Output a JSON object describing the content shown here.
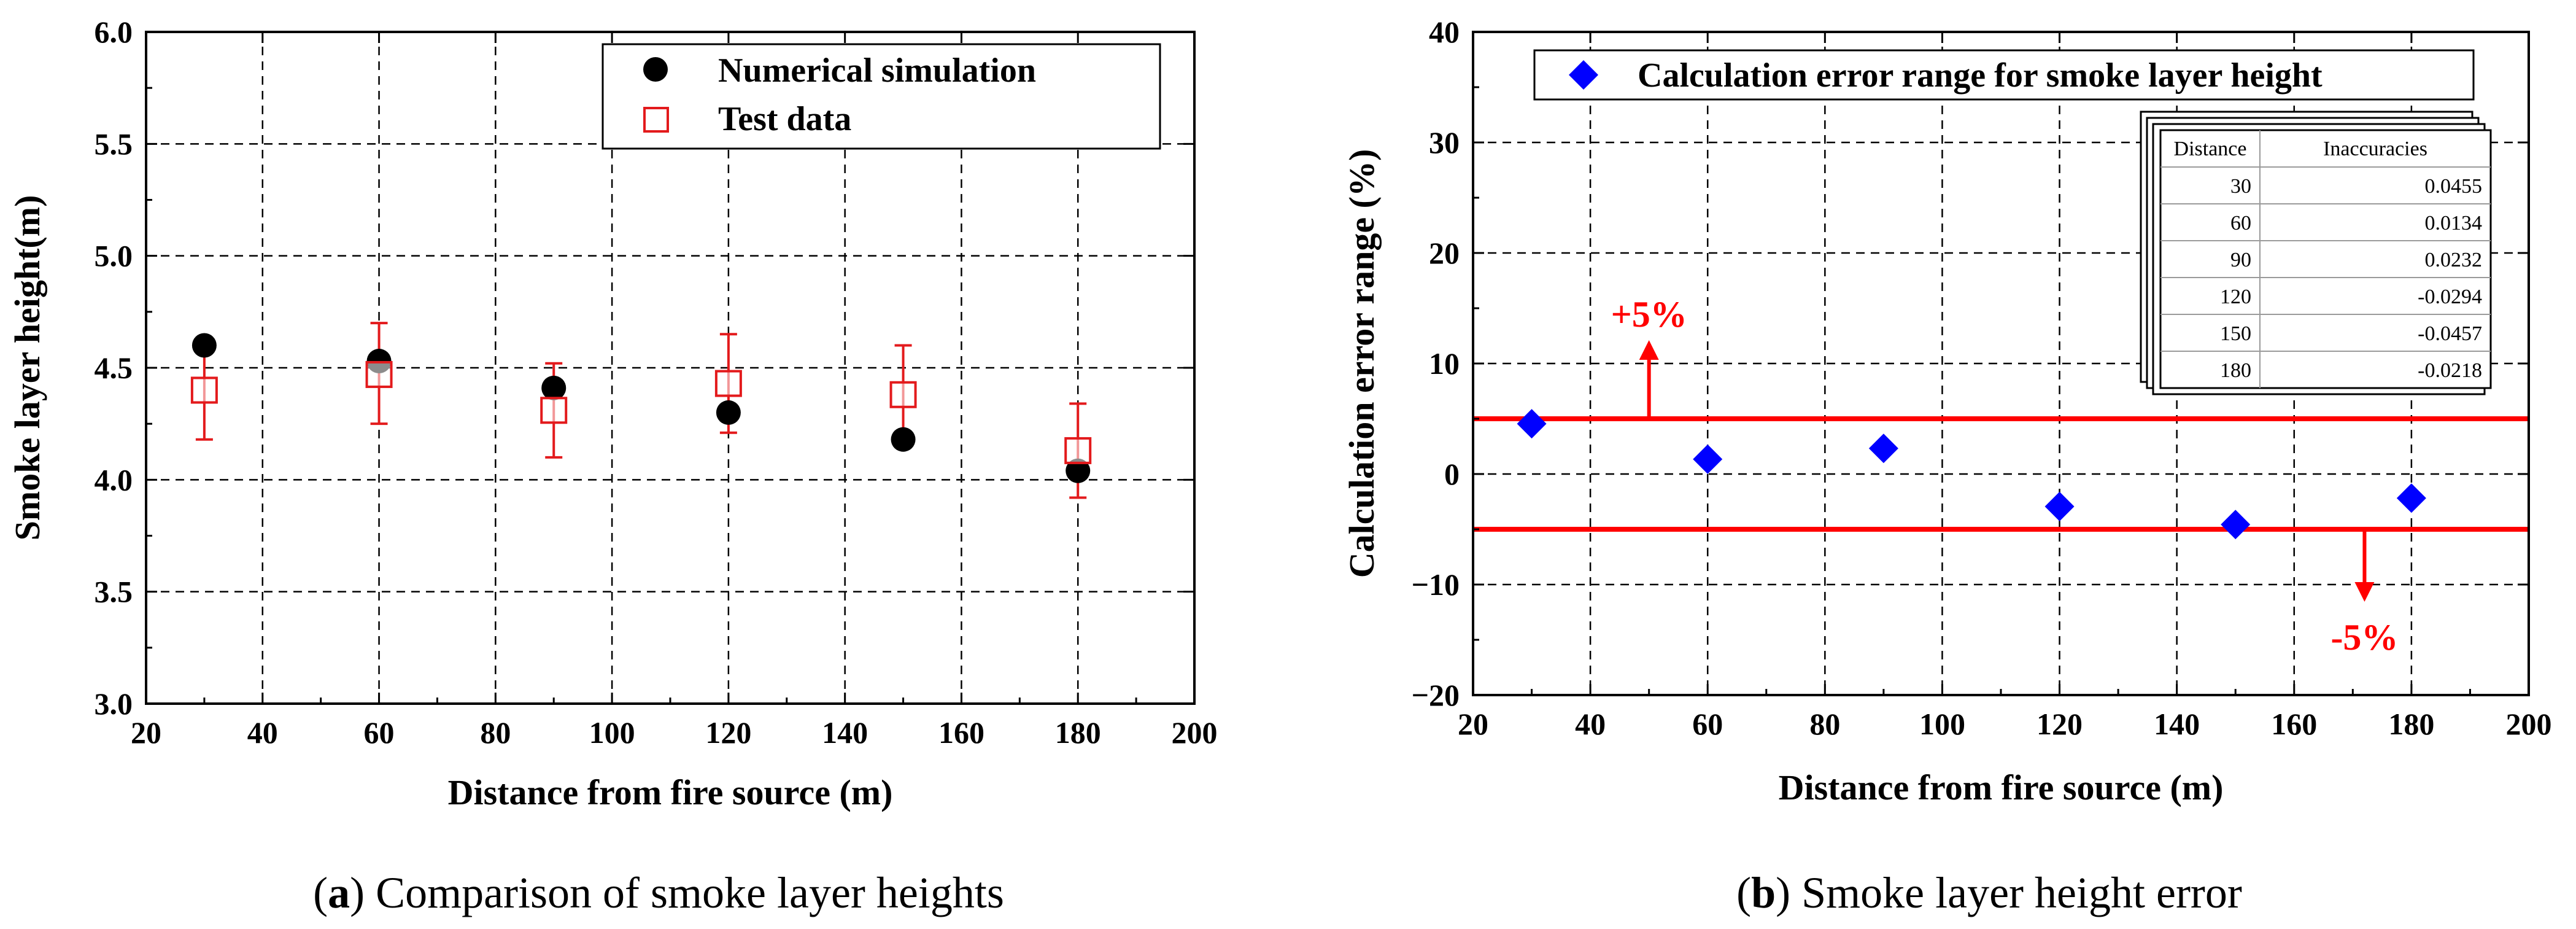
{
  "colors": {
    "sim": "#000000",
    "test": "#e31a1c",
    "error": "#0000ff",
    "limit": "#ff0000",
    "grid": "#000000"
  },
  "chart_data": [
    {
      "type": "scatter",
      "xlabel": "Distance from fire source (m)",
      "ylabel": "Smoke layer height(m)",
      "xlim": [
        20,
        200
      ],
      "ylim": [
        3.0,
        6.0
      ],
      "xticks": [
        "20",
        "40",
        "60",
        "80",
        "100",
        "120",
        "140",
        "160",
        "180",
        "200"
      ],
      "yticks": [
        "3.0",
        "3.5",
        "4.0",
        "4.5",
        "5.0",
        "5.5",
        "6.0"
      ],
      "grid": true,
      "legend_position": "top-right",
      "series": [
        {
          "name": "Numerical simulation",
          "marker": "filled-circle",
          "x": [
            30,
            60,
            90,
            120,
            150,
            180
          ],
          "y": [
            4.6,
            4.53,
            4.41,
            4.3,
            4.18,
            4.04
          ]
        },
        {
          "name": "Test data",
          "marker": "open-square",
          "x": [
            30,
            60,
            90,
            120,
            150,
            180
          ],
          "y": [
            4.4,
            4.47,
            4.31,
            4.43,
            4.38,
            4.13
          ],
          "err_low": [
            4.18,
            4.25,
            4.1,
            4.21,
            4.16,
            3.92
          ],
          "err_high": [
            4.6,
            4.7,
            4.52,
            4.65,
            4.6,
            4.34
          ]
        }
      ],
      "caption_letter": "a",
      "caption_text": " Comparison of smoke layer heights"
    },
    {
      "type": "scatter",
      "xlabel": "Distance from fire source (m)",
      "ylabel": "Calculation error range (%)",
      "xlim": [
        20,
        200
      ],
      "ylim": [
        -20,
        40
      ],
      "xticks": [
        "20",
        "40",
        "60",
        "80",
        "100",
        "120",
        "140",
        "160",
        "180",
        "200"
      ],
      "yticks": [
        "−20",
        "−10",
        "0",
        "10",
        "20",
        "30",
        "40"
      ],
      "grid": true,
      "legend_position": "top",
      "series": [
        {
          "name": "Calculation error range for smoke layer height",
          "marker": "filled-diamond",
          "x": [
            30,
            60,
            90,
            120,
            150,
            180
          ],
          "y": [
            4.55,
            1.34,
            2.32,
            -2.94,
            -4.57,
            -2.18
          ]
        }
      ],
      "reference_lines": [
        {
          "y": 5,
          "label": "+5%",
          "arrow": "up",
          "arrow_x": 50
        },
        {
          "y": -5,
          "label": "-5%",
          "arrow": "down",
          "arrow_x": 172
        }
      ],
      "table": {
        "headers": [
          "Distance",
          "Inaccuracies"
        ],
        "rows": [
          [
            "30",
            "0.0455"
          ],
          [
            "60",
            "0.0134"
          ],
          [
            "90",
            "0.0232"
          ],
          [
            "120",
            "-0.0294"
          ],
          [
            "150",
            "-0.0457"
          ],
          [
            "180",
            "-0.0218"
          ]
        ]
      },
      "caption_letter": "b",
      "caption_text": " Smoke layer height error"
    }
  ]
}
